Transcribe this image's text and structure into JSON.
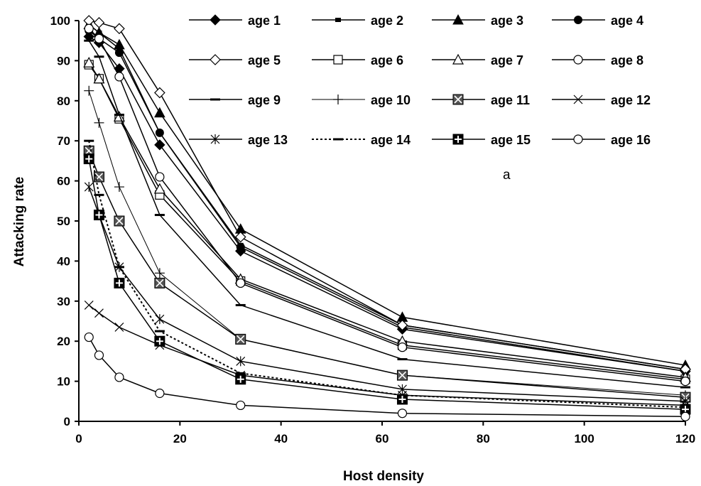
{
  "chart_data": {
    "type": "line",
    "title": "",
    "xlabel": "Host density",
    "ylabel": "Attacking rate",
    "annotation": "a",
    "xlim": [
      0,
      120
    ],
    "ylim": [
      0,
      100
    ],
    "x_ticks": [
      0,
      20,
      40,
      60,
      80,
      100,
      120
    ],
    "y_ticks": [
      0,
      10,
      20,
      30,
      40,
      50,
      60,
      70,
      80,
      90,
      100
    ],
    "grid": false,
    "legend_position": "top-right",
    "x": [
      2,
      4,
      8,
      16,
      32,
      64,
      120
    ],
    "series": [
      {
        "name": "age 1",
        "marker": "filled-diamond",
        "line": "solid",
        "values": [
          96,
          94.5,
          88,
          69,
          42.5,
          23,
          12.5
        ]
      },
      {
        "name": "age 2",
        "marker": "filled-square-small",
        "line": "solid",
        "values": [
          99,
          97,
          93,
          72,
          44,
          24,
          13
        ]
      },
      {
        "name": "age 3",
        "marker": "filled-triangle",
        "line": "solid",
        "values": [
          99,
          97,
          94,
          77,
          48,
          26,
          14
        ]
      },
      {
        "name": "age 4",
        "marker": "filled-circle",
        "line": "solid",
        "values": [
          97.5,
          95.5,
          92,
          72,
          43.5,
          23.5,
          12.5
        ]
      },
      {
        "name": "age 5",
        "marker": "open-diamond",
        "line": "solid",
        "values": [
          100,
          99.5,
          98,
          82,
          46,
          24,
          13
        ]
      },
      {
        "name": "age 6",
        "marker": "open-square",
        "line": "solid",
        "values": [
          89,
          85.5,
          75.5,
          56.5,
          35,
          19,
          10.5
        ]
      },
      {
        "name": "age 7",
        "marker": "open-triangle",
        "line": "solid",
        "values": [
          89.5,
          85.5,
          76,
          58,
          35.5,
          20,
          11
        ]
      },
      {
        "name": "age 8",
        "marker": "open-circle",
        "line": "solid",
        "values": [
          98,
          95.5,
          86,
          61,
          34.5,
          18.5,
          10
        ]
      },
      {
        "name": "age 9",
        "marker": "dash",
        "line": "solid",
        "values": [
          95,
          91,
          76.5,
          51.5,
          29,
          15.5,
          8.5
        ]
      },
      {
        "name": "age 10",
        "marker": "plus",
        "line": "thin",
        "values": [
          82.5,
          74.5,
          58.5,
          37,
          20.5,
          11.5,
          6.5
        ]
      },
      {
        "name": "age 11",
        "marker": "x-square",
        "line": "solid",
        "values": [
          67.5,
          61,
          50,
          34.5,
          20.5,
          11.5,
          6
        ]
      },
      {
        "name": "age 12",
        "marker": "x",
        "line": "solid",
        "values": [
          29,
          27,
          23.5,
          19,
          11.5,
          6.5,
          4
        ]
      },
      {
        "name": "age 13",
        "marker": "asterisk",
        "line": "solid",
        "values": [
          58.5,
          51.5,
          38.5,
          25.5,
          15,
          8,
          5
        ]
      },
      {
        "name": "age 14",
        "marker": "dash",
        "line": "dotted",
        "values": [
          70,
          56.5,
          38.5,
          22.5,
          12,
          6.5,
          3.5
        ]
      },
      {
        "name": "age 15",
        "marker": "plus-square",
        "line": "solid",
        "values": [
          65.5,
          51.5,
          34.5,
          20,
          10.5,
          5.5,
          3
        ]
      },
      {
        "name": "age 16",
        "marker": "open-circle",
        "line": "solid",
        "values": [
          21,
          16.5,
          11,
          7,
          4,
          2,
          1.2
        ]
      }
    ]
  }
}
